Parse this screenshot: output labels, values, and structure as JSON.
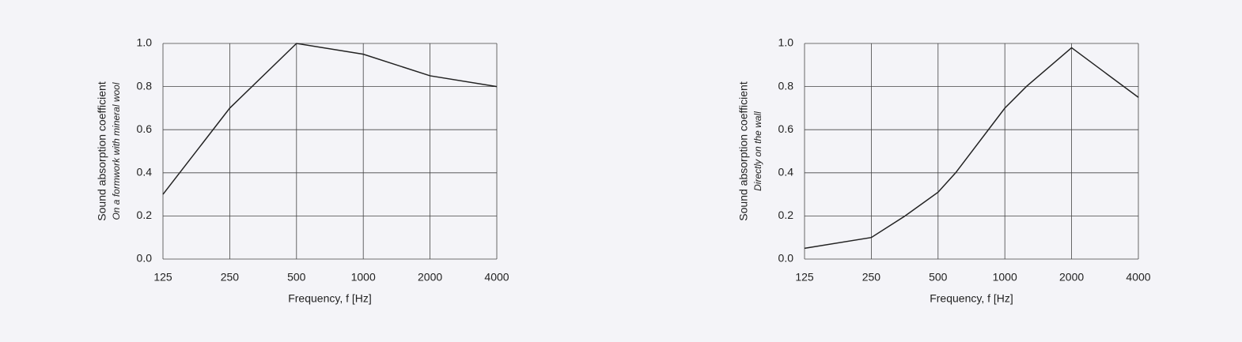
{
  "chart_data": [
    {
      "type": "line",
      "xscale": "log",
      "grid": true,
      "color": "#222222",
      "ylabel": "Sound absorption coefficient",
      "ylabel_sub": "On a formwork with mineral wool",
      "xlabel": "Frequency, f [Hz]",
      "xlim": [
        125,
        4000
      ],
      "xticks": [
        125,
        250,
        500,
        1000,
        2000,
        4000
      ],
      "ylim": [
        0,
        1
      ],
      "yticks": [
        {
          "value": 0,
          "label": "0.0"
        },
        0.2,
        0.4,
        0.6,
        0.8,
        {
          "value": 1,
          "label": "1.0"
        }
      ],
      "x": [
        125,
        250,
        500,
        1000,
        2000,
        4000
      ],
      "values": [
        0.3,
        0.7,
        1.0,
        0.95,
        0.85,
        0.8
      ]
    },
    {
      "type": "line",
      "xscale": "log",
      "grid": true,
      "color": "#222222",
      "ylabel": "Sound absorption coefficient",
      "ylabel_sub": "Directly on the wall",
      "xlabel": "Frequency, f [Hz]",
      "xlim": [
        125,
        4000
      ],
      "xticks": [
        125,
        250,
        500,
        1000,
        2000,
        4000
      ],
      "ylim": [
        0,
        1
      ],
      "yticks": [
        {
          "value": 0,
          "label": "0.0"
        },
        0.2,
        0.4,
        0.6,
        0.8,
        {
          "value": 1,
          "label": "1.0"
        }
      ],
      "x": [
        125,
        250,
        355,
        500,
        600,
        1000,
        1250,
        2000,
        4000
      ],
      "values": [
        0.05,
        0.1,
        0.2,
        0.31,
        0.4,
        0.7,
        0.8,
        0.98,
        0.75
      ]
    }
  ]
}
